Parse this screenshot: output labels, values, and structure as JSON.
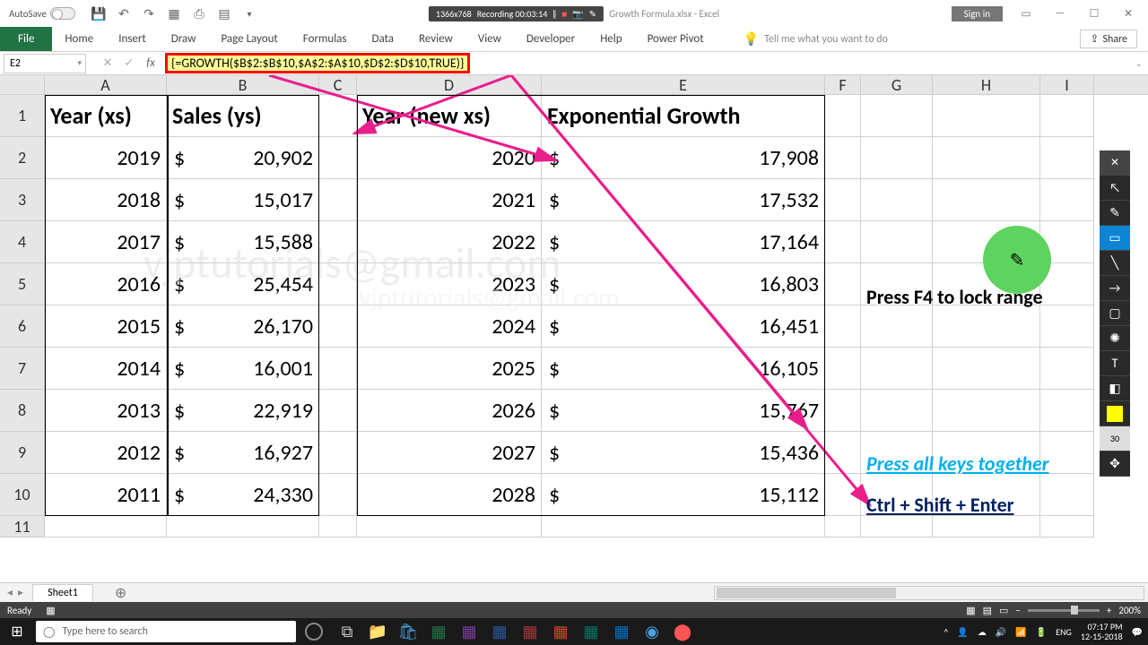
{
  "titlebar": {
    "autosave": "AutoSave",
    "resolution": "1366x768",
    "doc": "Growth Formula.xlsx - Excel",
    "recording": "Recording 00:03:14",
    "signin": "Sign in"
  },
  "tabs": [
    "File",
    "Home",
    "Insert",
    "Draw",
    "Page Layout",
    "Formulas",
    "Data",
    "Review",
    "View",
    "Developer",
    "Help",
    "Power Pivot"
  ],
  "tellme": "Tell me what you want to do",
  "share": "Share",
  "namebox": "E2",
  "formula": "{=GROWTH($B$2:$B$10,$A$2:$A$10,$D$2:$D$10,TRUE)}",
  "cols": {
    "A": 136,
    "B": 170,
    "C": 42,
    "D": 206,
    "E": 316,
    "F": 40,
    "G": 80,
    "H": 120,
    "I": 60
  },
  "headers": {
    "A1": "Year (xs)",
    "B1": "Sales (ys)",
    "D1": "Year (new xs)",
    "E1": "Exponential Growth"
  },
  "table1": [
    {
      "year": "2019",
      "sales": "20,902"
    },
    {
      "year": "2018",
      "sales": "15,017"
    },
    {
      "year": "2017",
      "sales": "15,588"
    },
    {
      "year": "2016",
      "sales": "25,454"
    },
    {
      "year": "2015",
      "sales": "26,170"
    },
    {
      "year": "2014",
      "sales": "16,001"
    },
    {
      "year": "2013",
      "sales": "22,919"
    },
    {
      "year": "2012",
      "sales": "16,927"
    },
    {
      "year": "2011",
      "sales": "24,330"
    }
  ],
  "table2": [
    {
      "year": "2020",
      "growth": "17,908"
    },
    {
      "year": "2021",
      "growth": "17,532"
    },
    {
      "year": "2022",
      "growth": "17,164"
    },
    {
      "year": "2023",
      "growth": "16,803"
    },
    {
      "year": "2024",
      "growth": "16,451"
    },
    {
      "year": "2025",
      "growth": "16,105"
    },
    {
      "year": "2026",
      "growth": "15,767"
    },
    {
      "year": "2027",
      "growth": "15,436"
    },
    {
      "year": "2028",
      "growth": "15,112"
    }
  ],
  "annotations": {
    "f4": "Press F4 to lock range",
    "together": "Press all keys together",
    "cse": "Ctrl + Shift + Enter"
  },
  "watermark1": "vjptutorials@gmail.com",
  "watermark2": "vjptutorials@gmail.com",
  "sheettab": "Sheet1",
  "status": "Ready",
  "zoom": "200%",
  "taskbar": {
    "search": "Type here to search",
    "time": "07:17 PM",
    "date": "12-15-2018",
    "lang": "ENG"
  },
  "colors": {
    "arrow": "#e91e8c",
    "highlight_border": "#ff0000",
    "highlight_fill": "#ffff99",
    "green_circle": "#5fd35f"
  }
}
